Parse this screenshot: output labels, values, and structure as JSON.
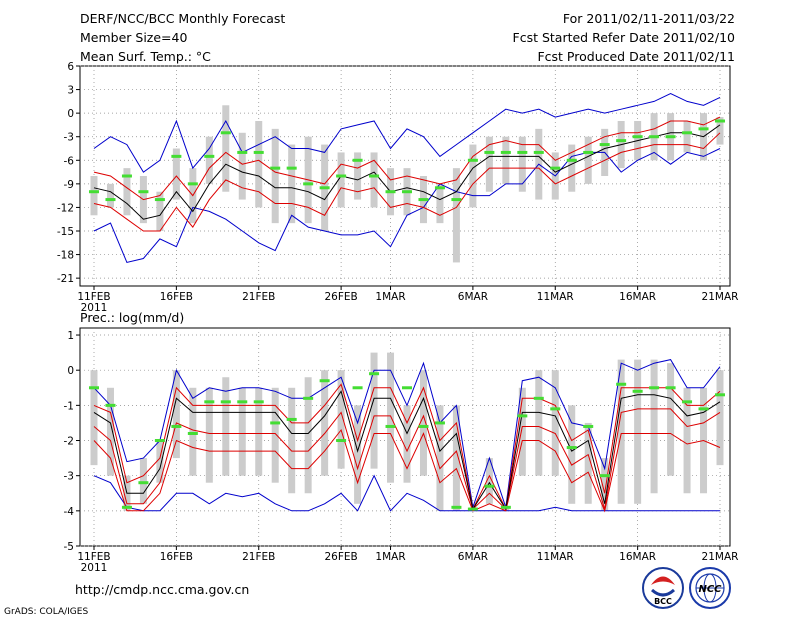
{
  "header": {
    "title": "DERF/NCC/BCC Monthly Forecast",
    "member_size": "Member Size=40",
    "variable": "Mean Surf. Temp.: °C",
    "period": "For 2011/02/11-2011/03/22",
    "fcst_started": "Fcst Started Refer Date 2011/02/10",
    "fcst_produced": "Fcst Produced Date 2011/02/11"
  },
  "footer": {
    "url": "http://cmdp.ncc.cma.gov.cn",
    "credit": "GrADS: COLA/IGES",
    "logo_bcc": "BCC",
    "logo_ncc": "NCC"
  },
  "colors": {
    "envelope": "#0000cc",
    "spread": "#dd0000",
    "mean": "#000000",
    "bar": "#cccccc",
    "member": "#44dd33",
    "grid": "#888888"
  },
  "chart_data": [
    {
      "type": "line",
      "title": "Mean Surf. Temp.: °C",
      "x_start_day_label": "11FEB",
      "x_labels": [
        "11FEB",
        "16FEB",
        "21FEB",
        "26FEB",
        "1MAR",
        "6MAR",
        "11MAR",
        "16MAR",
        "21MAR"
      ],
      "x_label_index": [
        0,
        5,
        10,
        15,
        18,
        23,
        28,
        33,
        38
      ],
      "x_year_label": "2011",
      "ylim": [
        -22,
        6
      ],
      "yticks": [
        6,
        3,
        0,
        -3,
        -6,
        -9,
        -12,
        -15,
        -18,
        -21
      ],
      "grid": true,
      "series": [
        {
          "name": "max",
          "values": [
            -4.5,
            -3,
            -4,
            -7.5,
            -6,
            -1,
            -7,
            -4.5,
            -1,
            -5,
            -4,
            -3,
            -4.5,
            -4.5,
            -5,
            -2,
            -1.5,
            -1,
            -4.5,
            -2,
            -3,
            -5.5,
            -4,
            -2.5,
            -1,
            0.5,
            0,
            0.5,
            -0.5,
            0,
            0.5,
            0,
            0.5,
            1,
            1.5,
            2.5,
            1.5,
            1,
            2
          ]
        },
        {
          "name": "upper",
          "values": [
            -7.5,
            -8,
            -9.5,
            -11,
            -10.5,
            -8,
            -10.5,
            -7,
            -5,
            -6.5,
            -6,
            -7.5,
            -8,
            -8.5,
            -9,
            -6.5,
            -7,
            -6,
            -8.5,
            -8,
            -8.5,
            -9,
            -8.5,
            -5.5,
            -4,
            -3.5,
            -4,
            -4,
            -6,
            -5,
            -4,
            -3,
            -2.5,
            -2.5,
            -2,
            -1,
            -1,
            -1.5,
            -0.5
          ]
        },
        {
          "name": "mean",
          "values": [
            -9.5,
            -10,
            -11.5,
            -13.5,
            -13,
            -10,
            -12.5,
            -9,
            -6.5,
            -7.5,
            -8,
            -9.5,
            -9.5,
            -10,
            -11,
            -8,
            -8.5,
            -7.5,
            -10,
            -9.5,
            -10,
            -11,
            -10,
            -7,
            -5.5,
            -5.5,
            -5.5,
            -5.5,
            -7.5,
            -6.5,
            -5.5,
            -4.5,
            -4,
            -3.5,
            -3,
            -2.5,
            -2.5,
            -3,
            -1.5
          ]
        },
        {
          "name": "lower",
          "values": [
            -11.5,
            -12,
            -13.5,
            -15,
            -15,
            -12,
            -14.5,
            -11,
            -8.5,
            -9.5,
            -10,
            -11.5,
            -11.5,
            -12,
            -13,
            -9.5,
            -10,
            -9.5,
            -12,
            -11.5,
            -12,
            -13,
            -12,
            -9,
            -7,
            -7,
            -7,
            -7,
            -9,
            -8,
            -7,
            -6,
            -5,
            -4.5,
            -4,
            -4,
            -4,
            -4.5,
            -2.5
          ]
        },
        {
          "name": "min",
          "values": [
            -15,
            -14,
            -19,
            -18.5,
            -16,
            -17,
            -12,
            -12.5,
            -13.5,
            -15,
            -16.5,
            -17.5,
            -13,
            -14.5,
            -15,
            -15.5,
            -15.5,
            -15,
            -17,
            -13,
            -12,
            -9,
            -10,
            -10.5,
            -10.5,
            -9,
            -9,
            -6.5,
            -8,
            -5.5,
            -5,
            -5,
            -7.5,
            -6,
            -5,
            -6.5,
            -5,
            -5.5,
            -4.5
          ]
        },
        {
          "name": "bar_top",
          "values": [
            -8,
            -9,
            -7,
            -8,
            -10,
            -4.5,
            -7,
            -3,
            1,
            -2.5,
            -1,
            -2,
            -4,
            -3,
            -4,
            -5,
            -5,
            -5,
            -7,
            -7,
            -8,
            -9,
            -7,
            -4,
            -3,
            -3,
            -3,
            -2,
            -5,
            -4,
            -3,
            -2,
            -1,
            -1,
            0,
            0,
            -1,
            0,
            -0.5
          ]
        },
        {
          "name": "bar_bottom",
          "values": [
            -13,
            -12,
            -13,
            -14,
            -15,
            -11,
            -14,
            -9,
            -10,
            -11,
            -12,
            -14,
            -14,
            -14,
            -15,
            -12,
            -11,
            -12,
            -13,
            -13,
            -14,
            -14,
            -19,
            -12,
            -10,
            -9,
            -10,
            -11,
            -11,
            -10,
            -9,
            -8,
            -7,
            -6,
            -6,
            -6,
            -5,
            -6,
            -4
          ]
        },
        {
          "name": "member_mark",
          "values": [
            -10,
            -11,
            -8,
            -10,
            -11,
            -5.5,
            -9,
            -5.5,
            -2.5,
            -5,
            -5,
            -7,
            -7,
            -9,
            -9.5,
            -8,
            -6,
            -8,
            -10,
            -10,
            -11,
            -9.5,
            -11,
            -6,
            -5,
            -5,
            -5,
            -5,
            -7,
            -6,
            -5,
            -4,
            -3.5,
            -3,
            -3,
            -3,
            -2.5,
            -2,
            -1
          ]
        }
      ]
    },
    {
      "type": "line",
      "title": "Prec.: log(mm/d)",
      "x_labels": [
        "11FEB",
        "16FEB",
        "21FEB",
        "26FEB",
        "1MAR",
        "6MAR",
        "11MAR",
        "16MAR",
        "21MAR"
      ],
      "x_label_index": [
        0,
        5,
        10,
        15,
        18,
        23,
        28,
        33,
        38
      ],
      "x_year_label": "2011",
      "ylim": [
        -5,
        1.2
      ],
      "yticks": [
        1,
        0,
        -1,
        -2,
        -3,
        -4,
        -5
      ],
      "grid": true,
      "series": [
        {
          "name": "max",
          "values": [
            -0.5,
            -1,
            -2.6,
            -2.5,
            -2,
            0,
            -0.8,
            -0.5,
            -0.6,
            -0.5,
            -0.5,
            -0.6,
            -0.8,
            -0.8,
            -0.5,
            -0.2,
            -1.5,
            0,
            0,
            -1,
            0.2,
            -1.5,
            -1,
            -3.9,
            -2.5,
            -3.9,
            -0.3,
            -0.2,
            -0.5,
            -1.5,
            -1.6,
            -2.8,
            0.2,
            0,
            0.2,
            0.3,
            -0.5,
            -0.5,
            0.1
          ]
        },
        {
          "name": "upper",
          "values": [
            -1,
            -1.2,
            -3.2,
            -3,
            -2.5,
            -0.5,
            -1,
            -1,
            -1,
            -1,
            -1,
            -1,
            -1.5,
            -1.5,
            -1,
            -0.4,
            -2,
            -0.5,
            -0.5,
            -1.5,
            -0.5,
            -2,
            -1.5,
            -3.95,
            -3,
            -3.95,
            -0.8,
            -0.8,
            -1,
            -2,
            -1.7,
            -3.5,
            -0.5,
            -0.5,
            -0.5,
            -0.5,
            -1,
            -1,
            -0.6
          ]
        },
        {
          "name": "mean",
          "values": [
            -1.2,
            -1.5,
            -3.5,
            -3.5,
            -2.8,
            -0.8,
            -1.2,
            -1.2,
            -1.2,
            -1.2,
            -1.2,
            -1.2,
            -1.8,
            -1.8,
            -1.3,
            -0.6,
            -2.3,
            -0.8,
            -0.8,
            -1.8,
            -0.8,
            -2.3,
            -1.8,
            -3.95,
            -3.2,
            -3.95,
            -1.2,
            -1.2,
            -1.3,
            -2.3,
            -2,
            -3.8,
            -0.8,
            -0.7,
            -0.7,
            -0.8,
            -1.3,
            -1.2,
            -0.9
          ]
        },
        {
          "name": "lower",
          "values": [
            -1.6,
            -2,
            -3.8,
            -3.8,
            -3.2,
            -1.5,
            -1.7,
            -1.8,
            -1.8,
            -1.8,
            -1.8,
            -1.8,
            -2.3,
            -2.3,
            -1.8,
            -1.2,
            -2.8,
            -1.3,
            -1.3,
            -2.3,
            -1.3,
            -2.8,
            -2.3,
            -3.95,
            -3.5,
            -3.95,
            -1.6,
            -1.6,
            -1.8,
            -2.7,
            -2.4,
            -3.95,
            -1.2,
            -1.1,
            -1.1,
            -1.1,
            -1.6,
            -1.5,
            -1.2
          ]
        },
        {
          "name": "lowest",
          "values": [
            -2,
            -2.5,
            -4,
            -4,
            -3.5,
            -2,
            -2.2,
            -2.3,
            -2.3,
            -2.3,
            -2.3,
            -2.3,
            -2.8,
            -2.8,
            -2.3,
            -1.7,
            -3.2,
            -1.8,
            -1.8,
            -2.8,
            -1.8,
            -3.2,
            -2.8,
            -4,
            -3.8,
            -4,
            -2,
            -2,
            -2.3,
            -3.2,
            -2.9,
            -4,
            -1.8,
            -1.8,
            -1.8,
            -1.8,
            -2.1,
            -2,
            -2.2
          ]
        },
        {
          "name": "min",
          "values": [
            -3,
            -3.2,
            -3.9,
            -4,
            -4,
            -3.5,
            -3.5,
            -3.8,
            -3.5,
            -3.6,
            -3.5,
            -3.8,
            -4,
            -4,
            -3.8,
            -3.5,
            -4,
            -3,
            -4,
            -3.5,
            -3.7,
            -4,
            -4,
            -4,
            -4,
            -4,
            -4,
            -4,
            -3.9,
            -4,
            -4,
            -4,
            -4,
            -4,
            -4,
            -4,
            -4,
            -4,
            -4
          ]
        },
        {
          "name": "bar_top",
          "values": [
            0,
            -0.5,
            -3,
            -2.5,
            -2,
            0,
            -0.5,
            -0.5,
            -0.2,
            -0.5,
            -0.5,
            -0.5,
            -0.5,
            -0.2,
            0,
            0,
            -1,
            0.5,
            0.5,
            -1,
            0,
            -1,
            -1,
            -3.9,
            -2.5,
            -3.9,
            -0.5,
            0,
            0,
            -1,
            -1.5,
            -2.5,
            0.3,
            0.3,
            0.3,
            0.2,
            -0.5,
            -0.5,
            0
          ]
        },
        {
          "name": "bar_bottom",
          "values": [
            -2.7,
            -3,
            -4,
            -3.8,
            -3.2,
            -2.5,
            -3,
            -3.2,
            -3,
            -3,
            -3,
            -3.2,
            -3.5,
            -3.5,
            -3,
            -2.8,
            -3.8,
            -2.8,
            -3.2,
            -3.2,
            -3,
            -4,
            -4,
            -4,
            -3.8,
            -4,
            -3,
            -3,
            -3,
            -3.8,
            -3.8,
            -4,
            -3.8,
            -3.8,
            -3.5,
            -3,
            -3.5,
            -3.5,
            -2.7
          ]
        },
        {
          "name": "member_mark",
          "values": [
            -0.5,
            -1,
            -3.9,
            -3.2,
            -2,
            -1.6,
            -1.8,
            -0.9,
            -0.9,
            -0.9,
            -0.9,
            -1.5,
            -1.4,
            -0.8,
            -0.3,
            -2,
            -0.5,
            -0.1,
            -1.6,
            -0.5,
            -1.6,
            -1.5,
            -3.9,
            -3.95,
            -3.3,
            -3.9,
            -1.3,
            -0.8,
            -1.1,
            -2.2,
            -1.6,
            -3,
            -0.4,
            -0.6,
            -0.5,
            -0.5,
            -0.9,
            -1.1,
            -0.7
          ]
        }
      ]
    }
  ]
}
